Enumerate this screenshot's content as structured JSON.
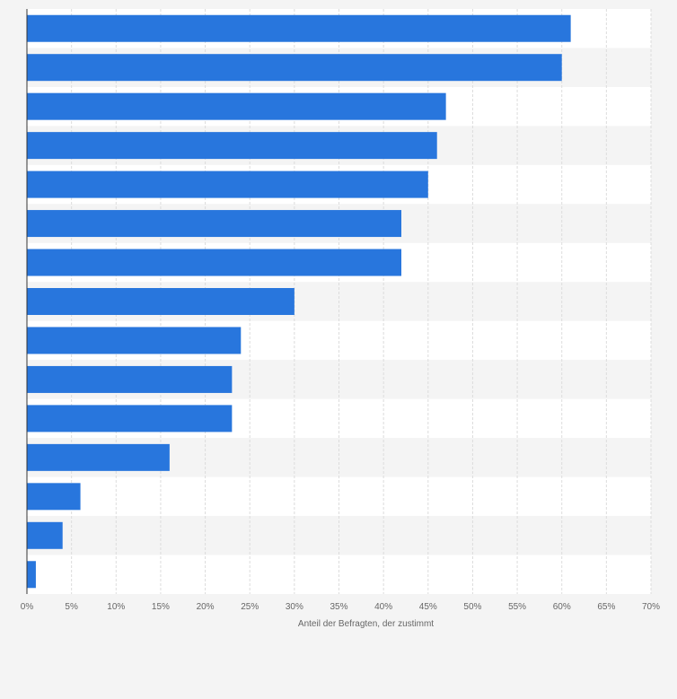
{
  "chart_data": {
    "type": "bar",
    "orientation": "horizontal",
    "categories": [
      "",
      "",
      "",
      "",
      "",
      "",
      "",
      "",
      "",
      "",
      "",
      "",
      "",
      "",
      ""
    ],
    "values": [
      61,
      60,
      47,
      46,
      45,
      42,
      42,
      30,
      24,
      23,
      23,
      16,
      6,
      4,
      1
    ],
    "xlabel": "Anteil der Befragten, der zustimmt",
    "ylabel": "",
    "xlim": [
      0,
      70
    ],
    "x_ticks": [
      0,
      5,
      10,
      15,
      20,
      25,
      30,
      35,
      40,
      45,
      50,
      55,
      60,
      65,
      70
    ],
    "tick_labels": [
      "0%",
      "5%",
      "10%",
      "15%",
      "20%",
      "25%",
      "30%",
      "35%",
      "40%",
      "45%",
      "50%",
      "55%",
      "60%",
      "65%",
      "70%"
    ],
    "grid": true,
    "legend": "none",
    "colors": {
      "bar": "#2876dd",
      "band_light": "#ffffff",
      "band_dark": "#f4f4f4",
      "page": "#f4f4f4",
      "grid": "#dcdcdc",
      "axis": "#333333",
      "text": "#666666"
    }
  }
}
